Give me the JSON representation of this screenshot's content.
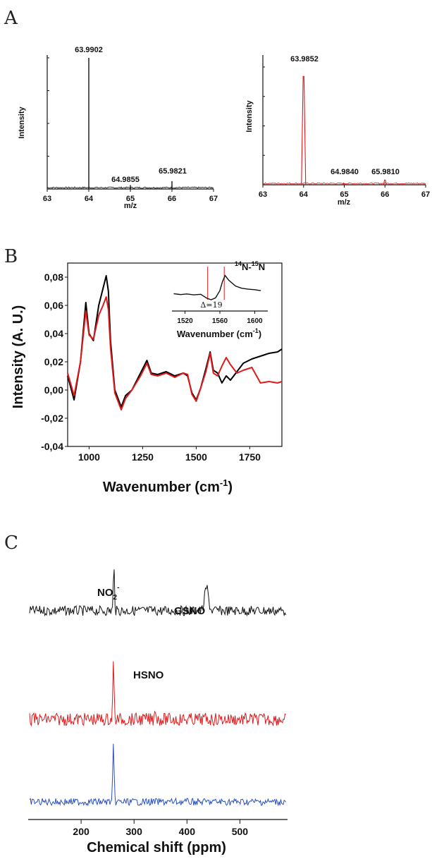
{
  "panels": {
    "A": {
      "letter": "A"
    },
    "B": {
      "letter": "B"
    },
    "C": {
      "letter": "C"
    }
  },
  "chart_data": [
    {
      "id": "A-left",
      "type": "line",
      "xlabel": "m/z",
      "ylabel": "Intensity",
      "xlim": [
        63,
        67
      ],
      "xticks": [
        63,
        64,
        65,
        66,
        67
      ],
      "ylim": [
        0,
        1
      ],
      "color": "#000000",
      "peaks": [
        {
          "x": 64.0,
          "y": 1.0,
          "label": "63.9902"
        },
        {
          "x": 65.0,
          "y": 0.03,
          "label": "64.9855"
        },
        {
          "x": 66.0,
          "y": 0.06,
          "label": "65.9821"
        }
      ]
    },
    {
      "id": "A-right",
      "type": "line",
      "xlabel": "m/z",
      "ylabel": "Intensity",
      "xlim": [
        63,
        67
      ],
      "xticks": [
        63,
        64,
        65,
        66,
        67
      ],
      "ylim": [
        0,
        1
      ],
      "color": "#e0191b",
      "peaks": [
        {
          "x": 64.0,
          "y": 0.92,
          "label": "63.9852"
        },
        {
          "x": 65.0,
          "y": 0.01,
          "label": "64.9840"
        },
        {
          "x": 66.0,
          "y": 0.04,
          "label": "65.9810"
        }
      ]
    },
    {
      "id": "B-main",
      "type": "line",
      "xlabel": "Wavenumber (cm",
      "xlabel_sup": "-1",
      "xlabel_tail": ")",
      "ylabel": "Intensity (A. U.)",
      "xlim": [
        900,
        1900
      ],
      "ylim": [
        -0.04,
        0.09
      ],
      "xticks": [
        1000,
        1250,
        1500,
        1750
      ],
      "yticks": [
        -0.04,
        -0.02,
        0.0,
        0.02,
        0.04,
        0.06,
        0.08
      ],
      "ytick_labels": [
        "-0,04",
        "-0,02",
        "0,00",
        "0,02",
        "0,04",
        "0,06",
        "0,08"
      ],
      "series": [
        {
          "color": "#000000",
          "x": [
            900,
            930,
            960,
            985,
            1000,
            1020,
            1045,
            1065,
            1080,
            1090,
            1100,
            1120,
            1150,
            1170,
            1200,
            1240,
            1270,
            1290,
            1320,
            1360,
            1400,
            1440,
            1460,
            1480,
            1500,
            1520,
            1545,
            1565,
            1580,
            1600,
            1620,
            1640,
            1660,
            1690,
            1720,
            1760,
            1800,
            1840,
            1880,
            1900
          ],
          "y": [
            0.01,
            -0.007,
            0.02,
            0.062,
            0.04,
            0.035,
            0.06,
            0.072,
            0.081,
            0.07,
            0.035,
            0.0,
            -0.012,
            -0.004,
            0.0,
            0.012,
            0.021,
            0.012,
            0.011,
            0.013,
            0.01,
            0.012,
            0.01,
            -0.002,
            -0.007,
            0.001,
            0.015,
            0.027,
            0.014,
            0.012,
            0.005,
            0.01,
            0.007,
            0.013,
            0.019,
            0.022,
            0.024,
            0.026,
            0.027,
            0.029
          ]
        },
        {
          "color": "#e0191b",
          "x": [
            900,
            930,
            960,
            985,
            1000,
            1020,
            1045,
            1065,
            1080,
            1090,
            1100,
            1120,
            1150,
            1170,
            1200,
            1240,
            1270,
            1290,
            1320,
            1360,
            1400,
            1440,
            1460,
            1480,
            1500,
            1520,
            1545,
            1565,
            1580,
            1600,
            1620,
            1640,
            1660,
            1690,
            1720,
            1760,
            1800,
            1840,
            1880,
            1900
          ],
          "y": [
            0.012,
            -0.004,
            0.02,
            0.056,
            0.039,
            0.036,
            0.053,
            0.06,
            0.066,
            0.057,
            0.03,
            -0.002,
            -0.014,
            -0.006,
            0.0,
            0.01,
            0.019,
            0.011,
            0.01,
            0.012,
            0.009,
            0.012,
            0.011,
            -0.003,
            -0.008,
            0.001,
            0.013,
            0.026,
            0.012,
            0.01,
            0.017,
            0.023,
            0.018,
            0.012,
            0.014,
            0.016,
            0.005,
            0.006,
            0.005,
            0.006
          ]
        }
      ],
      "inset": {
        "title": "N-",
        "title_iso1": "14",
        "title_iso2": "15",
        "title_tail": "N",
        "xlabel": "Wavenumber (cm",
        "xlabel_sup": "-1",
        "xlabel_tail": ")",
        "xlim": [
          1505,
          1615
        ],
        "xticks": [
          1520,
          1560,
          1600
        ],
        "delta": "Δ=19",
        "marker_lines": [
          1546,
          1565
        ],
        "series_x": [
          1507,
          1515,
          1522,
          1530,
          1538,
          1545,
          1550,
          1555,
          1560,
          1563,
          1566,
          1570,
          1578,
          1585,
          1592,
          1600,
          1607
        ],
        "series_y": [
          0.2,
          0.17,
          0.19,
          0.16,
          0.18,
          0.05,
          0.0,
          0.06,
          0.3,
          0.6,
          0.8,
          0.65,
          0.45,
          0.38,
          0.35,
          0.33,
          0.3
        ]
      }
    },
    {
      "id": "C",
      "type": "line",
      "xlabel": "Chemical shift (ppm)",
      "xlim": [
        100,
        590
      ],
      "xticks": [
        200,
        300,
        400,
        500
      ],
      "annotations": {
        "nitrite": "NO",
        "nitrite_sub": "2",
        "nitrite_sup": "-",
        "gsno": "GSNO",
        "hsno": "HSNO"
      },
      "series": [
        {
          "color": "#111111",
          "peaks": [
            {
              "x": 262,
              "h": 1.0
            },
            {
              "x": 437,
              "h": 0.55
            }
          ]
        },
        {
          "color": "#e0191b",
          "peaks": [
            {
              "x": 261,
              "h": 1.0
            },
            {
              "x": 340,
              "h": 0.25
            }
          ]
        },
        {
          "color": "#2a52be",
          "peaks": [
            {
              "x": 261,
              "h": 1.0
            }
          ]
        }
      ]
    }
  ]
}
